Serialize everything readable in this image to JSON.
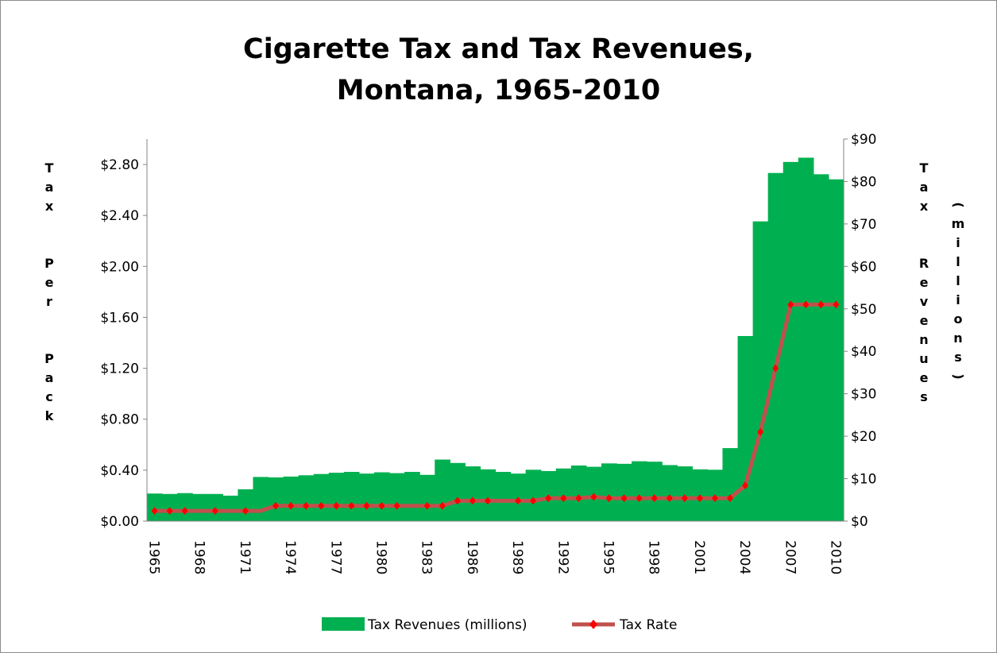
{
  "chart_data": {
    "type": "bar+line",
    "title_lines": [
      "Cigarette Tax and Tax Revenues,",
      "Montana, 1965-2010"
    ],
    "left_axis_label": "Tax Per Pack",
    "right_axis_label": "Tax Revenues (millions)",
    "left_axis": {
      "min": 0,
      "max": 3.0,
      "ticks": [
        "$0.00",
        "$0.40",
        "$0.80",
        "$1.20",
        "$1.60",
        "$2.00",
        "$2.40",
        "$2.80"
      ],
      "tick_values": [
        0,
        0.4,
        0.8,
        1.2,
        1.6,
        2.0,
        2.4,
        2.8
      ]
    },
    "right_axis": {
      "min": 0,
      "max": 90,
      "ticks": [
        "$0",
        "$10",
        "$20",
        "$30",
        "$40",
        "$50",
        "$60",
        "$70",
        "$80",
        "$90"
      ],
      "tick_values": [
        0,
        10,
        20,
        30,
        40,
        50,
        60,
        70,
        80,
        90
      ]
    },
    "x_tick_labels": [
      "1965",
      "1968",
      "1971",
      "1974",
      "1977",
      "1980",
      "1983",
      "1986",
      "1989",
      "1992",
      "1995",
      "1998",
      "2001",
      "2004",
      "2007",
      "2010"
    ],
    "years": [
      1965,
      1966,
      1967,
      1968,
      1969,
      1970,
      1971,
      1972,
      1973,
      1974,
      1975,
      1976,
      1977,
      1978,
      1979,
      1980,
      1981,
      1982,
      1983,
      1984,
      1985,
      1986,
      1987,
      1988,
      1989,
      1990,
      1991,
      1992,
      1993,
      1994,
      1995,
      1996,
      1997,
      1998,
      1999,
      2000,
      2001,
      2002,
      2003,
      2004,
      2005,
      2006,
      2007,
      2008,
      2009,
      2010
    ],
    "series": [
      {
        "name": "Tax Revenues (millions)",
        "kind": "bar",
        "axis": "right",
        "color": "#00b050",
        "values": [
          6.5,
          6.4,
          6.6,
          6.4,
          6.4,
          6.0,
          7.5,
          10.4,
          10.3,
          10.5,
          10.8,
          11.1,
          11.4,
          11.6,
          11.2,
          11.5,
          11.3,
          11.6,
          10.9,
          14.5,
          13.7,
          12.9,
          12.2,
          11.6,
          11.2,
          12.1,
          11.8,
          12.4,
          13.1,
          12.8,
          13.6,
          13.5,
          14.1,
          14.0,
          13.2,
          12.9,
          12.2,
          12.1,
          17.2,
          43.6,
          70.6,
          82.0,
          84.6,
          85.6,
          81.7,
          80.5
        ]
      },
      {
        "name": "Tax Rate",
        "kind": "line",
        "axis": "left",
        "color": "#c0504d",
        "marker_color": "#ff0000",
        "values": [
          0.08,
          0.08,
          0.08,
          0.08,
          0.08,
          0.08,
          0.08,
          0.08,
          0.12,
          0.12,
          0.12,
          0.12,
          0.12,
          0.12,
          0.12,
          0.12,
          0.12,
          0.12,
          0.12,
          0.12,
          0.16,
          0.16,
          0.16,
          0.16,
          0.16,
          0.16,
          0.18,
          0.18,
          0.18,
          0.19,
          0.18,
          0.18,
          0.18,
          0.18,
          0.18,
          0.18,
          0.18,
          0.18,
          0.18,
          0.28,
          0.7,
          1.2,
          1.7,
          1.7,
          1.7,
          1.7
        ]
      }
    ],
    "marker_years": [
      1965,
      1966,
      1967,
      1969,
      1971,
      1973,
      1974,
      1975,
      1976,
      1977,
      1978,
      1979,
      1980,
      1981,
      1983,
      1984,
      1985,
      1986,
      1987,
      1989,
      1990,
      1991,
      1992,
      1993,
      1994,
      1995,
      1996,
      1997,
      1998,
      1999,
      2000,
      2001,
      2002,
      2003,
      2004,
      2005,
      2006,
      2007,
      2008,
      2009,
      2010
    ],
    "legend": {
      "placement": "bottom"
    },
    "grid": false
  }
}
